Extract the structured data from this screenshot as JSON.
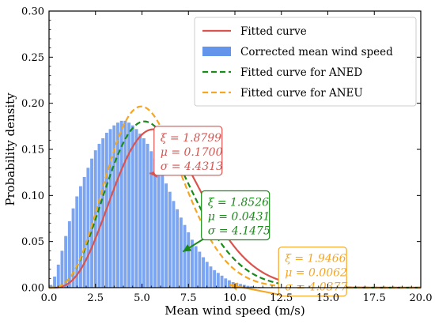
{
  "chart_data": {
    "type": "bar",
    "xlabel": "Mean wind speed (m/s)",
    "ylabel": "Probability density",
    "xlim": [
      0,
      20
    ],
    "ylim": [
      0,
      0.3
    ],
    "xticks": [
      "0.0",
      "2.5",
      "5.0",
      "7.5",
      "10.0",
      "12.5",
      "15.0",
      "17.5",
      "20.0"
    ],
    "yticks": [
      "0.00",
      "0.05",
      "0.10",
      "0.15",
      "0.20",
      "0.25",
      "0.30"
    ],
    "grid": false,
    "legend_position": "top-right",
    "histogram": {
      "name": "Corrected mean wind speed",
      "color": "#6495ed",
      "bin_width": 0.2,
      "bin_starts": [
        0.0,
        0.2,
        0.4,
        0.6,
        0.8,
        1.0,
        1.2,
        1.4,
        1.6,
        1.8,
        2.0,
        2.2,
        2.4,
        2.6,
        2.8,
        3.0,
        3.2,
        3.4,
        3.6,
        3.8,
        4.0,
        4.2,
        4.4,
        4.6,
        4.8,
        5.0,
        5.2,
        5.4,
        5.6,
        5.8,
        6.0,
        6.2,
        6.4,
        6.6,
        6.8,
        7.0,
        7.2,
        7.4,
        7.6,
        7.8,
        8.0,
        8.2,
        8.4,
        8.6,
        8.8,
        9.0,
        9.2,
        9.4,
        9.6,
        9.8,
        10.0,
        10.2,
        10.4,
        10.6,
        10.8,
        11.0,
        11.2,
        11.4,
        11.6,
        11.8
      ],
      "values": [
        0.003,
        0.012,
        0.025,
        0.04,
        0.056,
        0.072,
        0.086,
        0.099,
        0.11,
        0.12,
        0.13,
        0.14,
        0.149,
        0.156,
        0.162,
        0.168,
        0.172,
        0.176,
        0.179,
        0.181,
        0.181,
        0.179,
        0.176,
        0.172,
        0.167,
        0.162,
        0.156,
        0.148,
        0.14,
        0.131,
        0.122,
        0.113,
        0.104,
        0.094,
        0.085,
        0.076,
        0.068,
        0.06,
        0.052,
        0.045,
        0.039,
        0.033,
        0.028,
        0.023,
        0.019,
        0.016,
        0.013,
        0.01,
        0.008,
        0.006,
        0.005,
        0.004,
        0.003,
        0.002,
        0.0015,
        0.001,
        0.0008,
        0.0006,
        0.0004,
        0.0003
      ]
    },
    "series": [
      {
        "name": "Fitted curve",
        "color": "#d9534f",
        "style": "solid",
        "xi": 1.8799,
        "mu": 0.17,
        "sigma": 4.4313
      },
      {
        "name": "Fitted curve for ANED",
        "color": "#1a8a1a",
        "style": "dashed",
        "xi": 1.8526,
        "mu": 0.0431,
        "sigma": 4.1475
      },
      {
        "name": "Fitted curve for ANEU",
        "color": "#f5a623",
        "style": "dashed",
        "xi": 1.9466,
        "mu": 0.0062,
        "sigma": 4.0377
      }
    ],
    "legend": [
      {
        "label": "Fitted curve",
        "kind": "line",
        "color": "#d9534f",
        "style": "solid"
      },
      {
        "label": "Corrected mean wind speed",
        "kind": "patch",
        "color": "#6495ed"
      },
      {
        "label": "Fitted curve for ANED",
        "kind": "line",
        "color": "#1a8a1a",
        "style": "dashed"
      },
      {
        "label": "Fitted curve for ANEU",
        "kind": "line",
        "color": "#f5a623",
        "style": "dashed"
      }
    ],
    "annotations": [
      {
        "color": "#d9534f",
        "lines": [
          "ξ = 1.8799",
          "μ = 0.1700",
          "σ = 4.4313"
        ],
        "box_anchor": [
          5.65,
          0.175
        ],
        "arrow_target": [
          5.4,
          0.124
        ]
      },
      {
        "color": "#1a8a1a",
        "lines": [
          "ξ = 1.8526",
          "μ = 0.0431",
          "σ = 4.1475"
        ],
        "box_anchor": [
          8.2,
          0.105
        ],
        "arrow_target": [
          7.2,
          0.039
        ]
      },
      {
        "color": "#f5a623",
        "lines": [
          "ξ = 1.9466",
          "μ = 0.0062",
          "σ = 4.0377"
        ],
        "box_anchor": [
          12.35,
          0.044
        ],
        "arrow_target": [
          9.7,
          0.003
        ]
      }
    ]
  }
}
